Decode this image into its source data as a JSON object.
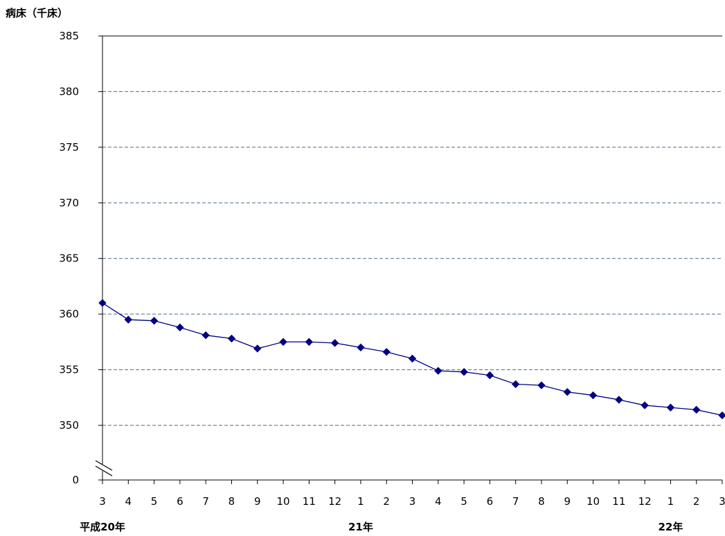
{
  "chart_data": {
    "type": "line",
    "title": "",
    "ylabel": "病床（千床）",
    "xlabel": "",
    "ylim": [
      345,
      385
    ],
    "y_ticks": [
      "0",
      "350",
      "355",
      "360",
      "365",
      "370",
      "375",
      "380",
      "385"
    ],
    "y_axis_break": true,
    "grid": true,
    "categories": [
      "3",
      "4",
      "5",
      "6",
      "7",
      "8",
      "9",
      "10",
      "11",
      "12",
      "1",
      "2",
      "3",
      "4",
      "5",
      "6",
      "7",
      "8",
      "9",
      "10",
      "11",
      "12",
      "1",
      "2",
      "3"
    ],
    "year_labels": [
      {
        "index": 0,
        "label": "平成20年"
      },
      {
        "index": 10,
        "label": "21年"
      },
      {
        "index": 22,
        "label": "22年"
      }
    ],
    "series": [
      {
        "values": [
          361.0,
          359.5,
          359.4,
          358.8,
          358.1,
          357.8,
          356.9,
          357.5,
          357.5,
          357.4,
          357.0,
          356.6,
          356.0,
          354.9,
          354.8,
          354.5,
          353.7,
          353.6,
          353.0,
          352.7,
          352.3,
          351.8,
          351.6,
          351.4,
          350.9
        ],
        "color": "#000080",
        "marker": "diamond"
      }
    ]
  }
}
